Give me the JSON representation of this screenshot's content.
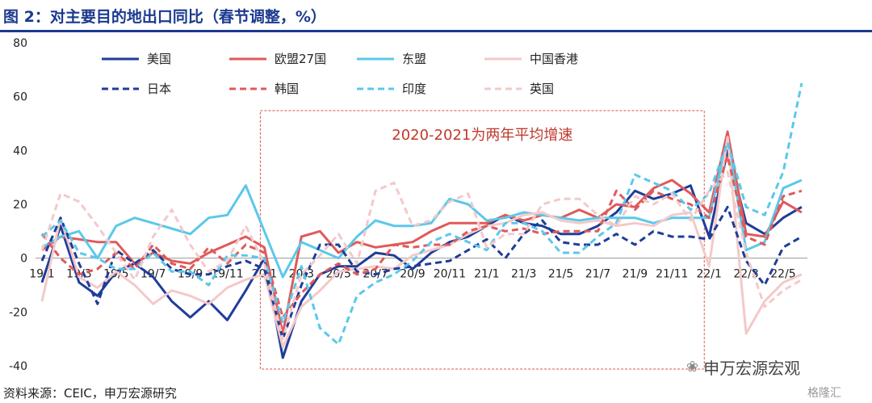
{
  "title": "图 2：对主要目的地出口同比（春节调整，%）",
  "source": "资料来源：CEIC，申万宏源研究",
  "watermark": "申万宏源宏观",
  "brand": "格隆汇",
  "chart_data": {
    "type": "line",
    "ylim": [
      -40,
      80
    ],
    "yticks": [
      -40,
      -20,
      0,
      20,
      40,
      60,
      80
    ],
    "x": [
      "19/1",
      "19/2",
      "19/3",
      "19/4",
      "19/5",
      "19/6",
      "19/7",
      "19/8",
      "19/9",
      "19/10",
      "19/11",
      "19/12",
      "20/1",
      "20/2",
      "20/3",
      "20/4",
      "20/5",
      "20/6",
      "20/7",
      "20/8",
      "20/9",
      "20/10",
      "20/11",
      "20/12",
      "21/1",
      "21/2",
      "21/3",
      "21/4",
      "21/5",
      "21/6",
      "21/7",
      "21/8",
      "21/9",
      "21/10",
      "21/11",
      "21/12",
      "22/1",
      "22/2",
      "22/3",
      "22/4",
      "22/5",
      "22/6"
    ],
    "xtick_labels": [
      "19/1",
      "19/3",
      "19/5",
      "19/7",
      "19/9",
      "19/11",
      "20/1",
      "20/3",
      "20/5",
      "20/7",
      "20/9",
      "20/11",
      "21/1",
      "21/3",
      "21/5",
      "21/7",
      "21/9",
      "21/11",
      "22/1",
      "22/3",
      "22/5"
    ],
    "annotation": "2020-2021为两年平均增速",
    "shaded_range": [
      "20/1",
      "21/12"
    ],
    "grid": false,
    "legend_position": "top",
    "series": [
      {
        "name": "美国",
        "color": "#1f3d99",
        "dash": false,
        "values": [
          -9,
          12,
          -9,
          -14,
          -5,
          -2,
          -7,
          -16,
          -22,
          -16,
          -23,
          -12,
          0,
          -37,
          -16,
          -6,
          -3,
          -3,
          2,
          1,
          -4,
          2,
          6,
          8,
          12,
          16,
          13,
          12,
          9,
          9,
          12,
          17,
          25,
          22,
          24,
          27,
          8,
          40,
          13,
          9,
          15,
          19
        ]
      },
      {
        "name": "欧盟27国",
        "color": "#e05a5a",
        "dash": false,
        "values": [
          3,
          8,
          7,
          6,
          6,
          -2,
          2,
          -1,
          -2,
          2,
          5,
          8,
          4,
          -28,
          8,
          10,
          2,
          6,
          4,
          5,
          6,
          10,
          13,
          13,
          13,
          16,
          14,
          16,
          15,
          18,
          15,
          20,
          19,
          26,
          29,
          24,
          17,
          47,
          9,
          8,
          21,
          17
        ]
      },
      {
        "name": "东盟",
        "color": "#5bc8ea",
        "dash": false,
        "values": [
          4,
          8,
          10,
          0,
          12,
          15,
          13,
          11,
          9,
          15,
          16,
          27,
          10,
          -7,
          6,
          3,
          0,
          8,
          14,
          12,
          12,
          13,
          22,
          20,
          14,
          15,
          17,
          16,
          15,
          14,
          15,
          15,
          15,
          13,
          15,
          15,
          15,
          44,
          3,
          6,
          26,
          29
        ]
      },
      {
        "name": "中国香港",
        "color": "#f4c9c9",
        "dash": false,
        "values": [
          -16,
          15,
          -7,
          -11,
          -5,
          -10,
          -17,
          -12,
          -14,
          -17,
          -11,
          -8,
          -6,
          -33,
          -18,
          -12,
          -5,
          -4,
          -3,
          -4,
          1,
          3,
          5,
          9,
          12,
          13,
          16,
          17,
          14,
          13,
          14,
          12,
          13,
          12,
          16,
          17,
          -3,
          45,
          -28,
          -16,
          -9,
          -6
        ]
      },
      {
        "name": "日本",
        "color": "#1f3d99",
        "dash": true,
        "values": [
          -1,
          15,
          -2,
          -17,
          3,
          -2,
          3,
          -4,
          -6,
          -6,
          -3,
          -1,
          -4,
          -30,
          -10,
          5,
          5,
          -5,
          -6,
          -4,
          -3,
          -2,
          -1,
          3,
          7,
          0,
          9,
          14,
          6,
          5,
          5,
          9,
          5,
          10,
          8,
          8,
          7,
          19,
          -1,
          -10,
          4,
          8
        ]
      },
      {
        "name": "韩国",
        "color": "#e05a5a",
        "dash": true,
        "values": [
          9,
          0,
          -6,
          -4,
          2,
          -4,
          5,
          -2,
          -4,
          4,
          -2,
          5,
          2,
          -22,
          -13,
          -6,
          -2,
          -6,
          -4,
          5,
          4,
          5,
          5,
          10,
          12,
          10,
          11,
          9,
          10,
          10,
          10,
          25,
          18,
          25,
          22,
          20,
          15,
          38,
          8,
          5,
          23,
          25
        ]
      },
      {
        "name": "印度",
        "color": "#5bc8ea",
        "dash": true,
        "values": [
          8,
          14,
          2,
          0,
          -4,
          -4,
          2,
          -5,
          -5,
          -10,
          1,
          1,
          0,
          -24,
          -3,
          -26,
          -32,
          -14,
          -9,
          -6,
          -1,
          6,
          9,
          6,
          3,
          13,
          13,
          10,
          2,
          2,
          8,
          13,
          31,
          28,
          25,
          18,
          24,
          43,
          19,
          16,
          32,
          65
        ]
      },
      {
        "name": "英国",
        "color": "#f4c9c9",
        "dash": true,
        "values": [
          3,
          24,
          21,
          12,
          2,
          -8,
          8,
          18,
          5,
          -5,
          -1,
          12,
          -2,
          -30,
          -6,
          1,
          9,
          -2,
          25,
          28,
          12,
          14,
          21,
          24,
          4,
          9,
          9,
          20,
          22,
          22,
          16,
          12,
          23,
          20,
          24,
          14,
          25,
          32,
          2,
          -18,
          -12,
          -8
        ]
      }
    ]
  }
}
